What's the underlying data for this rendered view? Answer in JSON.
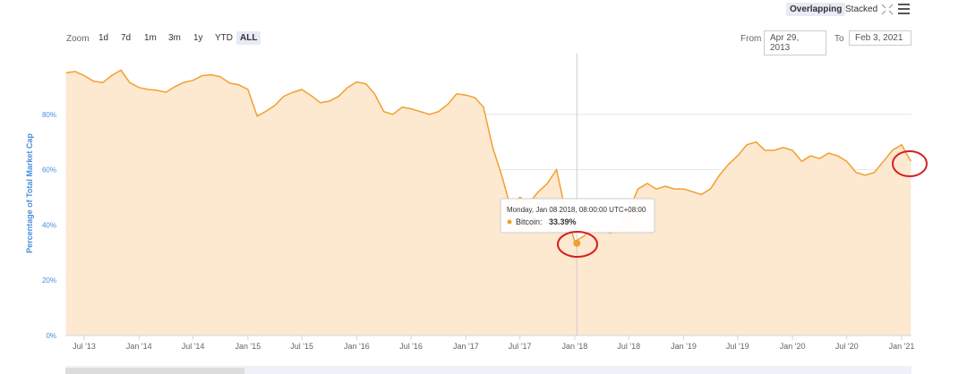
{
  "controls": {
    "modes": [
      "Overlapping",
      "Stacked"
    ],
    "zoom_label": "Zoom",
    "zoom": [
      "1d",
      "7d",
      "1m",
      "3m",
      "1y",
      "YTD",
      "ALL"
    ],
    "from_label": "From",
    "from": "Apr 29, 2013",
    "to_label": "To",
    "to": "Feb 3, 2021"
  },
  "chart_data": {
    "type": "area",
    "y_label": "Percentage of Total Market Cap",
    "x": [
      "2013-05",
      "2013-06",
      "2013-07",
      "2013-08",
      "2013-09",
      "2013-10",
      "2013-11",
      "2013-12",
      "2014-01",
      "2014-02",
      "2014-03",
      "2014-04",
      "2014-05",
      "2014-06",
      "2014-07",
      "2014-08",
      "2014-09",
      "2014-10",
      "2014-11",
      "2014-12",
      "2015-01",
      "2015-02",
      "2015-03",
      "2015-04",
      "2015-05",
      "2015-06",
      "2015-07",
      "2015-08",
      "2015-09",
      "2015-10",
      "2015-11",
      "2015-12",
      "2016-01",
      "2016-02",
      "2016-03",
      "2016-04",
      "2016-05",
      "2016-06",
      "2016-07",
      "2016-08",
      "2016-09",
      "2016-10",
      "2016-11",
      "2016-12",
      "2017-01",
      "2017-02",
      "2017-03",
      "2017-04",
      "2017-05",
      "2017-06",
      "2017-07",
      "2017-08",
      "2017-09",
      "2017-10",
      "2017-11",
      "2017-12",
      "2018-01",
      "2018-02",
      "2018-03",
      "2018-04",
      "2018-05",
      "2018-06",
      "2018-07",
      "2018-08",
      "2018-09",
      "2018-10",
      "2018-11",
      "2018-12",
      "2019-01",
      "2019-02",
      "2019-03",
      "2019-04",
      "2019-05",
      "2019-06",
      "2019-07",
      "2019-08",
      "2019-09",
      "2019-10",
      "2019-11",
      "2019-12",
      "2020-01",
      "2020-02",
      "2020-03",
      "2020-04",
      "2020-05",
      "2020-06",
      "2020-07",
      "2020-08",
      "2020-09",
      "2020-10",
      "2020-11",
      "2020-12",
      "2021-01",
      "2021-02"
    ],
    "series": [
      {
        "color": "#f0a030",
        "fill": "#fde8d0",
        "values": [
          95,
          95.5,
          94,
          92,
          91.5,
          94,
          96,
          91.5,
          89.7,
          89,
          88.7,
          88,
          90,
          91.6,
          92.3,
          94,
          94.3,
          93.6,
          91.3,
          90.7,
          89,
          79.4,
          81,
          83.2,
          86.5,
          88,
          89,
          86.8,
          84.2,
          84.8,
          86.5,
          89.7,
          91.7,
          91,
          87.4,
          81,
          80,
          82.6,
          82,
          81,
          80,
          81,
          83.6,
          87.4,
          87,
          86,
          82.6,
          68,
          58,
          46,
          50,
          48,
          52,
          55,
          60,
          45,
          34,
          36,
          40,
          38,
          37,
          39,
          45,
          53,
          55,
          53,
          54,
          53,
          53,
          52,
          51,
          53,
          58,
          62,
          65,
          69,
          70,
          67,
          67,
          68,
          67,
          63,
          65,
          64,
          66,
          65,
          63,
          59,
          58,
          59,
          63,
          67,
          69,
          63
        ]
      }
    ],
    "xlim": [
      "2013-04-29",
      "2021-02-03"
    ],
    "xticks": [
      {
        "value": "2013-07",
        "label": "Jul '13"
      },
      {
        "value": "2014-01",
        "label": "Jan '14"
      },
      {
        "value": "2014-07",
        "label": "Jul '14"
      },
      {
        "value": "2015-01",
        "label": "Jan '15"
      },
      {
        "value": "2015-07",
        "label": "Jul '15"
      },
      {
        "value": "2016-01",
        "label": "Jan '16"
      },
      {
        "value": "2016-07",
        "label": "Jul '16"
      },
      {
        "value": "2017-01",
        "label": "Jan '17"
      },
      {
        "value": "2017-07",
        "label": "Jul '17"
      },
      {
        "value": "2018-01",
        "label": "Jan '18"
      },
      {
        "value": "2018-07",
        "label": "Jul '18"
      },
      {
        "value": "2019-01",
        "label": "Jan '19"
      },
      {
        "value": "2019-07",
        "label": "Jul '19"
      },
      {
        "value": "2020-01",
        "label": "Jan '20"
      },
      {
        "value": "2020-07",
        "label": "Jul '20"
      },
      {
        "value": "2021-01",
        "label": "Jan '21"
      }
    ],
    "ylim": [
      0,
      100
    ],
    "yticks": [
      {
        "value": 0,
        "label": "0%"
      },
      {
        "value": 20,
        "label": "20%"
      },
      {
        "value": 40,
        "label": "40%"
      },
      {
        "value": 60,
        "label": "60%"
      },
      {
        "value": 80,
        "label": "80%"
      }
    ],
    "grid": true,
    "tooltip": {
      "x": "2018-01-08",
      "header": "Monday, Jan 08 2018, 08:00:00 UTC+08:00",
      "label": "Bitcoin:",
      "value": 33.39,
      "value_label": "33.39%"
    }
  }
}
